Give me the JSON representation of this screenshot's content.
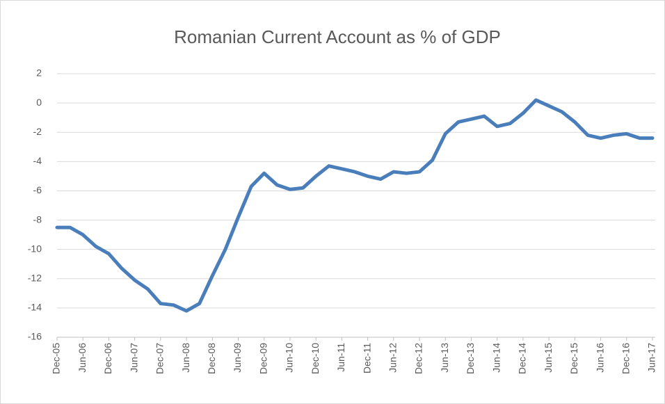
{
  "chart_data": {
    "type": "line",
    "title": "Romanian Current Account as % of GDP",
    "categories": [
      "Dec-05",
      null,
      "Jun-06",
      null,
      "Dec-06",
      null,
      "Jun-07",
      null,
      "Dec-07",
      null,
      "Jun-08",
      null,
      "Dec-08",
      null,
      "Jun-09",
      null,
      "Dec-09",
      null,
      "Jun-10",
      null,
      "Dec-10",
      null,
      "Jun-11",
      null,
      "Dec-11",
      null,
      "Jun-12",
      null,
      "Dec-12",
      null,
      "Jun-13",
      null,
      "Dec-13",
      null,
      "Jun-14",
      null,
      "Dec-14",
      null,
      "Jun-15",
      null,
      "Dec-15",
      null,
      "Jun-16",
      null,
      "Dec-16",
      null,
      "Jun-17"
    ],
    "values": [
      -8.5,
      -8.5,
      -9.0,
      -9.8,
      -10.3,
      -11.3,
      -12.1,
      -12.7,
      -13.7,
      -13.8,
      -14.2,
      -13.7,
      -11.8,
      -10.0,
      -7.8,
      -5.7,
      -4.8,
      -5.6,
      -5.9,
      -5.8,
      -5.0,
      -4.3,
      -4.5,
      -4.7,
      -5.0,
      -5.2,
      -4.7,
      -4.8,
      -4.7,
      -3.9,
      -2.1,
      -1.3,
      -1.1,
      -0.9,
      -1.6,
      -1.4,
      -0.7,
      0.2,
      -0.2,
      -0.6,
      -1.3,
      -2.2,
      -2.4,
      -2.2,
      -2.1,
      -2.4,
      -2.4
    ],
    "color": "#4a7ebb",
    "ylim": [
      -16,
      2
    ],
    "yticks": [
      -16,
      -14,
      -12,
      -10,
      -8,
      -6,
      -4,
      -2,
      0,
      2
    ],
    "grid": true
  }
}
